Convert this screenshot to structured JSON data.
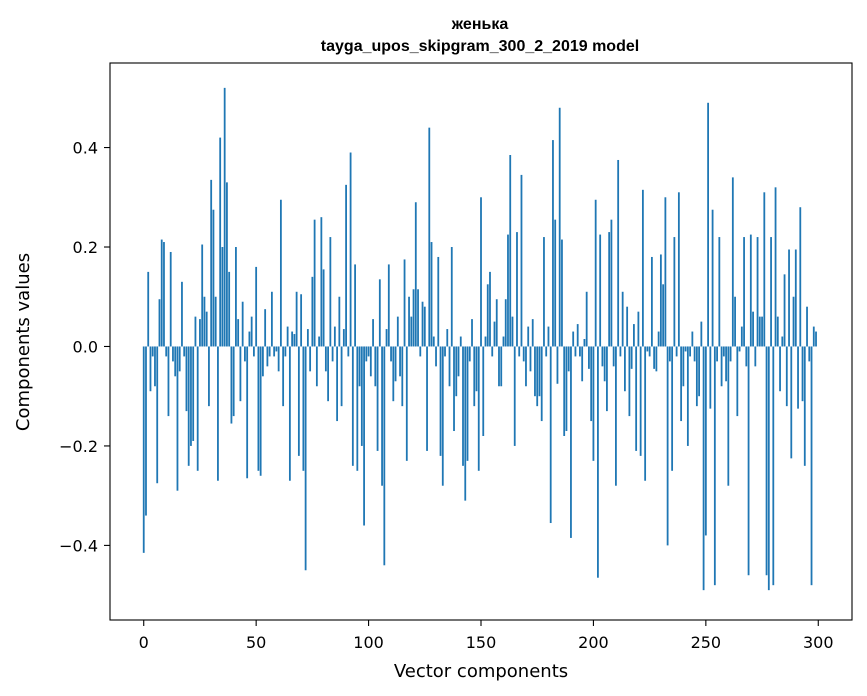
{
  "chart_data": {
    "type": "bar",
    "title": "женька",
    "subtitle": "tayga_upos_skipgram_300_2_2019 model",
    "xlabel": "Vector components",
    "ylabel": "Components values",
    "xlim": [
      -15,
      315
    ],
    "ylim": [
      -0.55,
      0.57
    ],
    "xticks": [
      0,
      50,
      100,
      150,
      200,
      250,
      300
    ],
    "yticks": [
      -0.4,
      -0.2,
      0.0,
      0.2,
      0.4
    ],
    "ytick_labels": [
      "−0.4",
      "−0.2",
      "0.0",
      "0.2",
      "0.4"
    ],
    "bar_color": "#1f77b4",
    "grid": false,
    "legend": "none",
    "values": [
      -0.415,
      -0.34,
      0.15,
      -0.09,
      -0.02,
      -0.08,
      -0.275,
      0.095,
      0.215,
      0.21,
      -0.02,
      -0.14,
      0.19,
      -0.03,
      -0.06,
      -0.29,
      -0.05,
      0.13,
      -0.02,
      -0.13,
      -0.24,
      -0.2,
      -0.19,
      0.06,
      -0.25,
      0.055,
      0.205,
      0.1,
      0.07,
      -0.12,
      0.335,
      0.275,
      0.1,
      -0.27,
      0.42,
      0.2,
      0.52,
      0.33,
      0.15,
      -0.155,
      -0.14,
      0.2,
      0.055,
      -0.11,
      0.09,
      -0.03,
      -0.265,
      0.03,
      0.06,
      -0.02,
      0.16,
      -0.25,
      -0.26,
      -0.06,
      0.075,
      -0.04,
      -0.02,
      0.11,
      -0.02,
      -0.01,
      -0.05,
      0.295,
      -0.12,
      -0.02,
      0.04,
      -0.27,
      0.03,
      0.025,
      0.11,
      -0.22,
      0.105,
      -0.25,
      -0.45,
      0.035,
      -0.05,
      0.14,
      0.255,
      -0.08,
      0.02,
      0.26,
      0.155,
      -0.05,
      -0.11,
      0.22,
      -0.03,
      0.04,
      -0.15,
      0.1,
      -0.12,
      0.035,
      0.325,
      -0.02,
      0.39,
      -0.24,
      0.165,
      -0.25,
      -0.08,
      -0.2,
      -0.36,
      -0.03,
      -0.02,
      -0.06,
      0.055,
      -0.08,
      -0.21,
      0.135,
      -0.28,
      -0.44,
      0.035,
      0.165,
      -0.03,
      -0.11,
      -0.07,
      0.06,
      -0.06,
      -0.12,
      0.175,
      -0.23,
      0.1,
      0.06,
      0.115,
      0.29,
      0.115,
      -0.02,
      0.09,
      0.08,
      -0.21,
      0.44,
      0.21,
      0.02,
      -0.04,
      0.18,
      -0.22,
      -0.28,
      -0.02,
      0.035,
      -0.08,
      0.2,
      -0.17,
      -0.1,
      -0.06,
      0.02,
      -0.24,
      -0.31,
      -0.23,
      -0.03,
      0.055,
      -0.12,
      -0.09,
      -0.25,
      0.3,
      -0.18,
      0.02,
      0.125,
      0.15,
      -0.02,
      0.05,
      0.095,
      -0.08,
      -0.08,
      0.02,
      0.095,
      0.225,
      0.385,
      0.06,
      -0.2,
      0.23,
      -0.02,
      0.345,
      -0.03,
      -0.08,
      0.04,
      -0.05,
      0.055,
      -0.1,
      -0.12,
      -0.1,
      -0.15,
      0.22,
      -0.02,
      0.04,
      -0.355,
      0.415,
      0.255,
      -0.075,
      0.48,
      0.215,
      -0.18,
      -0.17,
      -0.05,
      -0.385,
      0.03,
      -0.02,
      0.045,
      -0.02,
      -0.07,
      0.015,
      0.11,
      -0.045,
      -0.15,
      -0.23,
      0.295,
      -0.465,
      0.225,
      -0.04,
      -0.07,
      -0.13,
      0.23,
      0.255,
      -0.04,
      -0.28,
      0.375,
      -0.02,
      0.11,
      -0.09,
      0.08,
      -0.14,
      -0.045,
      0.045,
      -0.21,
      0.07,
      -0.22,
      0.315,
      -0.27,
      -0.01,
      -0.02,
      0.18,
      -0.045,
      -0.05,
      0.03,
      0.185,
      0.125,
      0.3,
      -0.4,
      -0.03,
      -0.25,
      0.22,
      -0.02,
      0.31,
      -0.15,
      -0.08,
      -0.01,
      -0.2,
      -0.02,
      0.03,
      -0.03,
      -0.12,
      -0.1,
      0.05,
      -0.49,
      -0.38,
      0.49,
      -0.125,
      0.275,
      -0.48,
      -0.03,
      0.22,
      -0.08,
      -0.02,
      -0.07,
      -0.28,
      -0.03,
      0.34,
      0.1,
      -0.14,
      -0.01,
      0.04,
      0.22,
      -0.04,
      -0.46,
      0.225,
      0.07,
      -0.04,
      0.22,
      0.06,
      0.06,
      0.31,
      -0.46,
      -0.49,
      0.22,
      -0.48,
      0.32,
      0.06,
      -0.09,
      0.02,
      0.145,
      -0.12,
      0.195,
      -0.225,
      0.1,
      0.195,
      -0.125,
      0.28,
      -0.11,
      -0.24,
      0.08,
      -0.03,
      -0.48,
      0.04,
      0.03
    ]
  }
}
